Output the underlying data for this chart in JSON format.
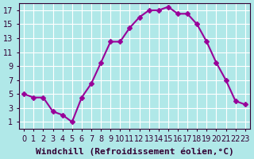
{
  "x": [
    0,
    1,
    2,
    3,
    4,
    5,
    6,
    7,
    8,
    9,
    10,
    11,
    12,
    13,
    14,
    15,
    16,
    17,
    18,
    19,
    20,
    21,
    22,
    23
  ],
  "y": [
    5.0,
    4.5,
    4.5,
    2.5,
    2.0,
    1.0,
    4.5,
    6.5,
    9.5,
    12.5,
    12.5,
    14.5,
    16.0,
    17.0,
    17.0,
    17.5,
    16.5,
    16.5,
    15.0,
    12.5,
    9.5,
    7.0,
    4.0,
    3.5
  ],
  "line_color": "#990099",
  "marker": "D",
  "marker_size": 3,
  "background_color": "#b0e8e8",
  "grid_color": "#ffffff",
  "xlabel": "Windchill (Refroidissement éolien,°C)",
  "xlim": [
    -0.5,
    23.5
  ],
  "ylim": [
    0,
    18
  ],
  "yticks": [
    1,
    3,
    5,
    7,
    9,
    11,
    13,
    15,
    17
  ],
  "xticks": [
    0,
    1,
    2,
    3,
    4,
    5,
    6,
    7,
    8,
    9,
    10,
    11,
    12,
    13,
    14,
    15,
    16,
    17,
    18,
    19,
    20,
    21,
    22,
    23
  ],
  "xtick_labels": [
    "0",
    "1",
    "2",
    "3",
    "4",
    "5",
    "6",
    "7",
    "8",
    "9",
    "10",
    "11",
    "12",
    "13",
    "14",
    "15",
    "16",
    "17",
    "18",
    "19",
    "20",
    "21",
    "22",
    "23"
  ],
  "tick_fontsize": 7,
  "xlabel_fontsize": 8,
  "line_width": 1.5
}
